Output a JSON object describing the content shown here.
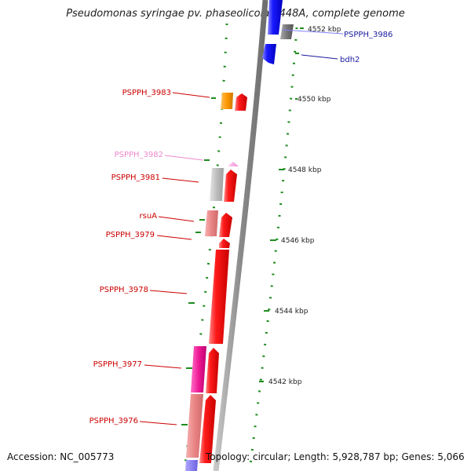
{
  "title": "Pseudomonas syringae pv. phaseolicola 1448A, complete genome",
  "footer": {
    "accession": "Accession: NC_005773",
    "stats": "Topology: circular; Length: 5,928,787 bp; Genes: 5,066"
  },
  "colors": {
    "backbone": "#8a8a8a",
    "tick": "#1f8c1f",
    "forward": "#ee0000",
    "reverse": "#0000ee"
  },
  "scale_labels": [
    {
      "kbp": 4552,
      "label": "4552 kbp"
    },
    {
      "kbp": 4550,
      "label": "4550 kbp"
    },
    {
      "kbp": 4548,
      "label": "4548 kbp"
    },
    {
      "kbp": 4546,
      "label": "4546 kbp"
    },
    {
      "kbp": 4544,
      "label": "4544 kbp"
    },
    {
      "kbp": 4542,
      "label": "4542 kbp"
    }
  ],
  "gene_labels": [
    {
      "name": "PSPPH_3986",
      "color": "#1a1aa0"
    },
    {
      "name": "bdh2",
      "color": "#1a1aa0"
    },
    {
      "name": "PSPPH_3983",
      "color": "#cc0000"
    },
    {
      "name": "PSPPH_3982",
      "color": "#ee88cc"
    },
    {
      "name": "PSPPH_3981",
      "color": "#cc0000"
    },
    {
      "name": "rsuA",
      "color": "#cc0000"
    },
    {
      "name": "PSPPH_3979",
      "color": "#cc0000"
    },
    {
      "name": "PSPPH_3978",
      "color": "#cc0000"
    },
    {
      "name": "PSPPH_3977",
      "color": "#cc0000"
    },
    {
      "name": "PSPPH_3976",
      "color": "#cc0000"
    }
  ]
}
